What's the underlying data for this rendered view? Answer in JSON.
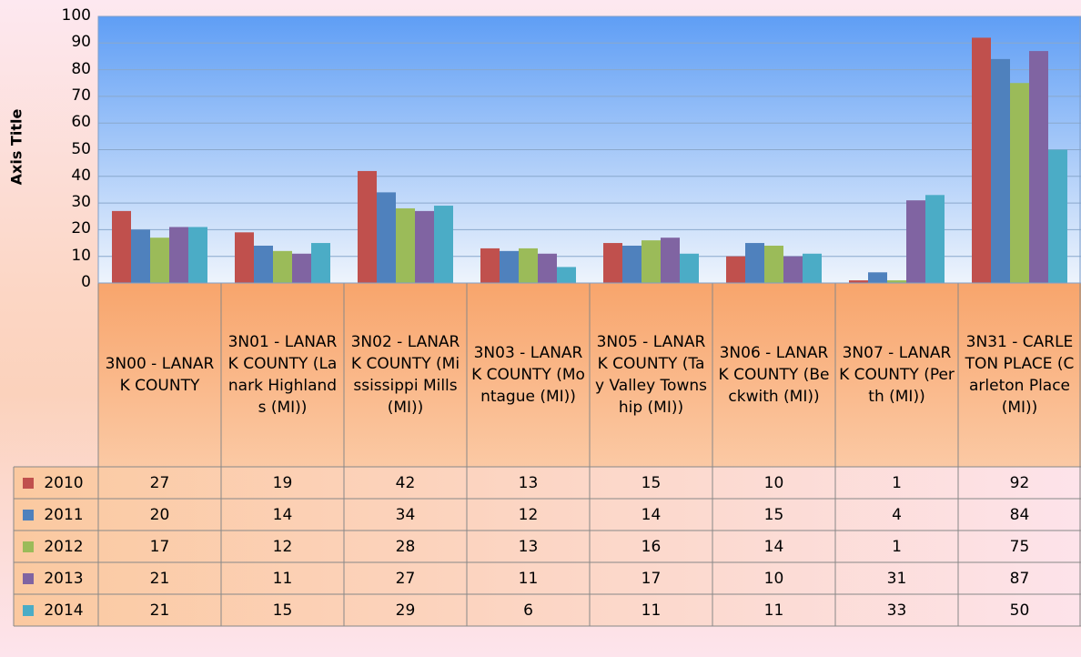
{
  "chart_data": {
    "type": "bar",
    "y_axis_title": "Axis Title",
    "categories": [
      "3N00 - LANARK COUNTY",
      "3N01 - LANARK COUNTY (Lanark Highlands (MI))",
      "3N02 - LANARK COUNTY (Mississippi Mills (MI))",
      "3N03 - LANARK COUNTY (Montague (MI))",
      "3N05 - LANARK COUNTY (Tay Valley Township (MI))",
      "3N06 - LANARK COUNTY (Beckwith (MI))",
      "3N07 - LANARK COUNTY (Perth (MI))",
      "3N31 - CARLETON PLACE (Carleton Place (MI))"
    ],
    "series": [
      {
        "name": "2010",
        "color": "#c0504d",
        "values": [
          27,
          19,
          42,
          13,
          15,
          10,
          1,
          92
        ]
      },
      {
        "name": "2011",
        "color": "#4f81bd",
        "values": [
          20,
          14,
          34,
          12,
          14,
          15,
          4,
          84
        ]
      },
      {
        "name": "2012",
        "color": "#9bbb59",
        "values": [
          17,
          12,
          28,
          13,
          16,
          14,
          1,
          75
        ]
      },
      {
        "name": "2013",
        "color": "#8064a2",
        "values": [
          21,
          11,
          27,
          11,
          17,
          10,
          31,
          87
        ]
      },
      {
        "name": "2014",
        "color": "#4bacc6",
        "values": [
          21,
          15,
          29,
          6,
          11,
          11,
          33,
          50
        ]
      }
    ],
    "ylim": [
      0,
      100
    ],
    "yticks": [
      0,
      10,
      20,
      30,
      40,
      50,
      60,
      70,
      80,
      90,
      100
    ],
    "grid": true,
    "data_table": true
  }
}
